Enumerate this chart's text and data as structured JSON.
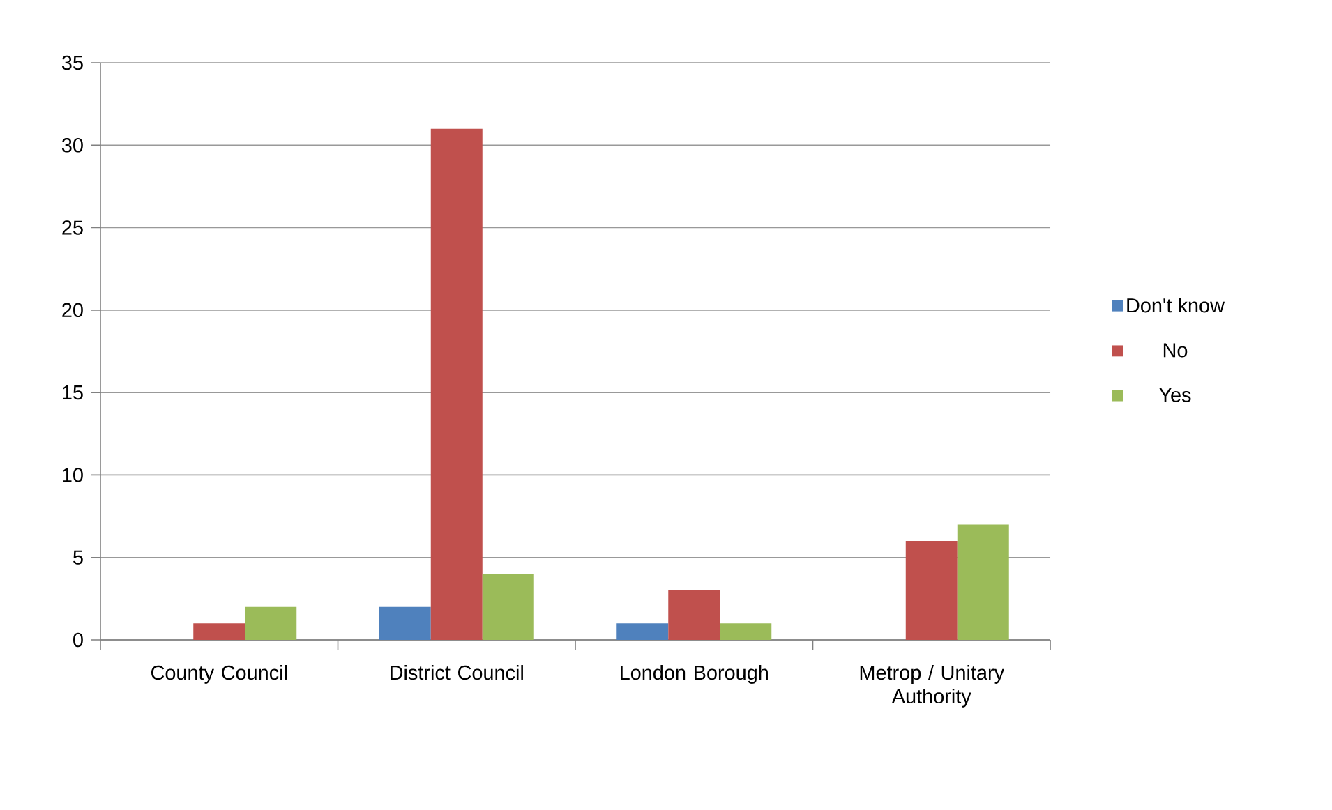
{
  "chart_data": {
    "type": "bar",
    "categories": [
      "County Council",
      "District Council",
      "London Borough",
      "Metrop / Unitary Authority"
    ],
    "series": [
      {
        "name": "Don't know",
        "color": "#4f81bd",
        "values": [
          0,
          2,
          1,
          0
        ]
      },
      {
        "name": "No",
        "color": "#c0504d",
        "values": [
          1,
          31,
          3,
          6
        ]
      },
      {
        "name": "Yes",
        "color": "#9bbb59",
        "values": [
          2,
          4,
          1,
          7
        ]
      }
    ],
    "ylim": [
      0,
      35
    ],
    "yticks": [
      0,
      5,
      10,
      15,
      20,
      25,
      30,
      35
    ],
    "grid": "y",
    "legend": "right"
  }
}
